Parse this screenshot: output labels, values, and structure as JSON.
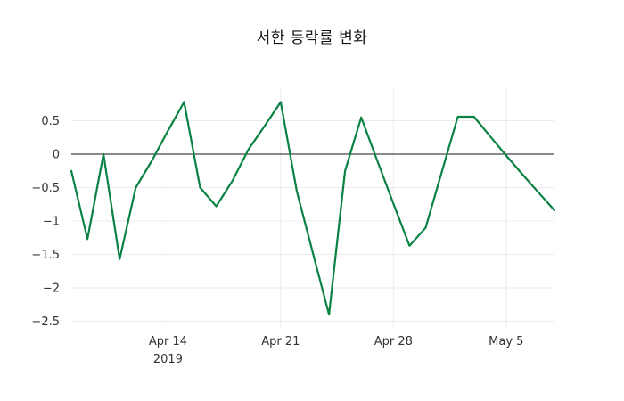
{
  "title": "서한 등락률 변화",
  "chart_data": {
    "type": "line",
    "title": "서한 등락률 변화",
    "x": [
      "2019-04-08",
      "2019-04-09",
      "2019-04-10",
      "2019-04-11",
      "2019-04-12",
      "2019-04-13",
      "2019-04-14",
      "2019-04-15",
      "2019-04-16",
      "2019-04-17",
      "2019-04-18",
      "2019-04-19",
      "2019-04-20",
      "2019-04-21",
      "2019-04-22",
      "2019-04-23",
      "2019-04-24",
      "2019-04-25",
      "2019-04-26",
      "2019-04-27",
      "2019-04-28",
      "2019-04-29",
      "2019-04-30",
      "2019-05-01",
      "2019-05-02",
      "2019-05-03",
      "2019-05-04",
      "2019-05-05",
      "2019-05-06",
      "2019-05-07",
      "2019-05-08"
    ],
    "values": [
      -0.25,
      -1.27,
      0.0,
      -1.57,
      -0.5,
      -0.1,
      0.35,
      0.78,
      -0.5,
      -0.78,
      -0.4,
      0.07,
      0.42,
      0.78,
      -0.55,
      -1.48,
      -2.4,
      -0.25,
      0.55,
      -0.1,
      -0.74,
      -1.37,
      -1.1,
      -0.27,
      0.56,
      0.56,
      0.27,
      -0.02,
      -0.3,
      -0.57,
      -0.84
    ],
    "ylim": [
      -2.6,
      1.0
    ],
    "y_ticks": [
      0.5,
      0,
      -0.5,
      -1,
      -1.5,
      -2,
      -2.5
    ],
    "x_ticks": [
      {
        "label": "Apr 14",
        "sublabel": "2019",
        "date": "2019-04-14"
      },
      {
        "label": "Apr 21",
        "date": "2019-04-21"
      },
      {
        "label": "Apr 28",
        "date": "2019-04-28"
      },
      {
        "label": "May 5",
        "date": "2019-05-05"
      }
    ],
    "line_color": "#0a8243",
    "grid_color": "#ebebeb",
    "zero_line_color": "#444444",
    "background_color": "#ffffff",
    "legend": false,
    "grid": true,
    "zero_line": true
  }
}
